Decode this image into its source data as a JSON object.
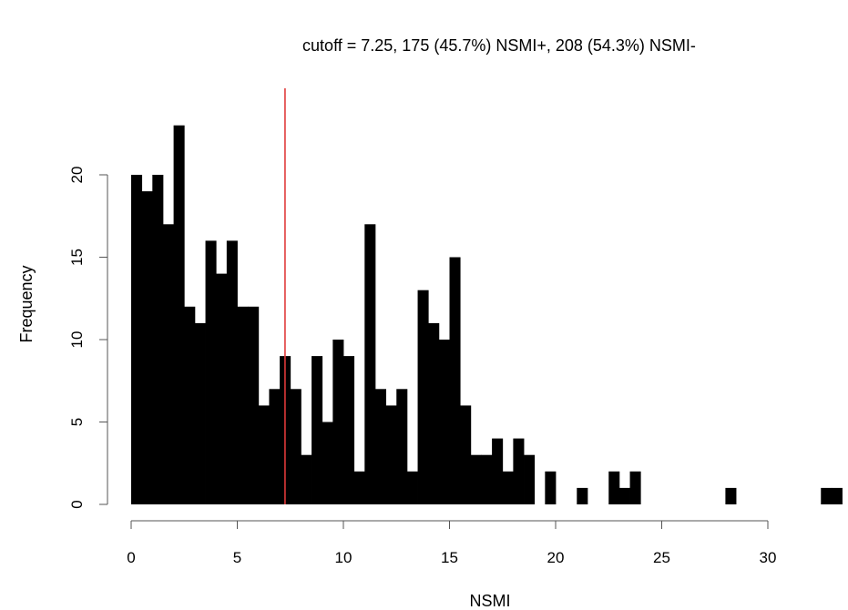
{
  "chart_data": {
    "type": "bar",
    "subtype": "histogram",
    "title": "cutoff = 7.25, 175 (45.7%) NSMI+, 208 (54.3%) NSMI-",
    "xlabel": "NSMI",
    "ylabel": "Frequency",
    "bin_width": 0.5,
    "bin_start": 0,
    "xlim": [
      0,
      33.5
    ],
    "ylim": [
      0,
      25
    ],
    "x_ticks": [
      0,
      5,
      10,
      15,
      20,
      25,
      30
    ],
    "y_ticks": [
      0,
      5,
      10,
      15,
      20
    ],
    "counts": [
      20,
      19,
      20,
      17,
      23,
      12,
      11,
      16,
      14,
      16,
      12,
      12,
      6,
      7,
      9,
      7,
      3,
      9,
      5,
      10,
      9,
      2,
      17,
      7,
      6,
      7,
      2,
      13,
      11,
      10,
      15,
      6,
      3,
      3,
      4,
      2,
      4,
      3,
      0,
      2,
      0,
      0,
      1,
      0,
      0,
      2,
      1,
      2,
      0,
      0,
      0,
      0,
      0,
      0,
      0,
      0,
      1,
      0,
      0,
      0,
      0,
      0,
      0,
      0,
      0,
      1,
      1
    ],
    "cutoff": 7.25,
    "cutoff_color": "#e03a3a",
    "bar_color": "#000000",
    "grid": false
  }
}
